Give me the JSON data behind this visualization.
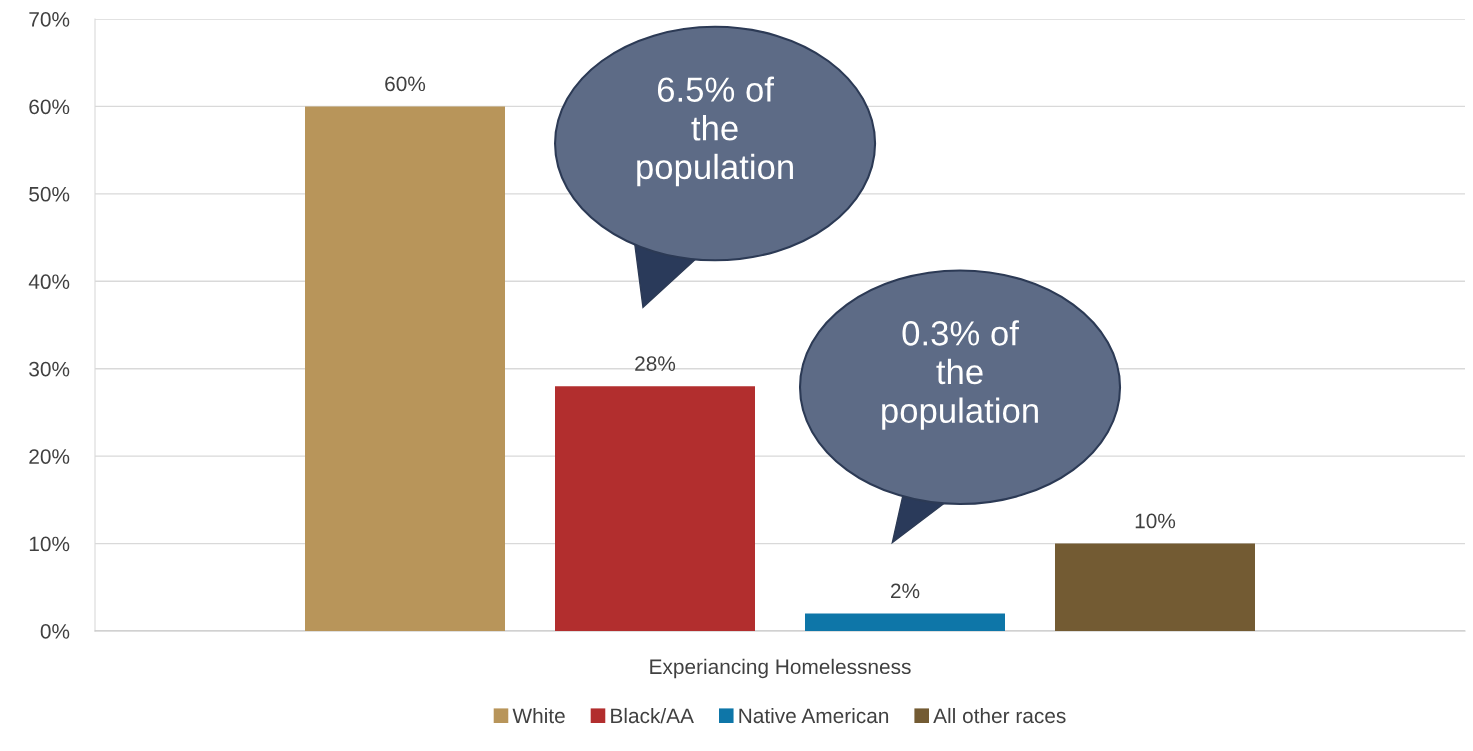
{
  "chart_data": {
    "type": "bar",
    "categories": [
      "Experiancing Homelessness"
    ],
    "series": [
      {
        "name": "White",
        "color": "#b8955a",
        "values": [
          60
        ]
      },
      {
        "name": "Black/AA",
        "color": "#b22e2e",
        "values": [
          28
        ]
      },
      {
        "name": "Native American",
        "color": "#0e76a8",
        "values": [
          2
        ]
      },
      {
        "name": "All other races",
        "color": "#735b33",
        "values": [
          10
        ]
      }
    ],
    "value_labels": [
      [
        "60%"
      ],
      [
        "28%"
      ],
      [
        "2%"
      ],
      [
        "10%"
      ]
    ],
    "ylim": [
      0,
      70
    ],
    "yticks": [
      {
        "value": 0,
        "label": "0%"
      },
      {
        "value": 10,
        "label": "10%"
      },
      {
        "value": 20,
        "label": "20%"
      },
      {
        "value": 30,
        "label": "30%"
      },
      {
        "value": 40,
        "label": "40%"
      },
      {
        "value": 50,
        "label": "50%"
      },
      {
        "value": 60,
        "label": "60%"
      },
      {
        "value": 70,
        "label": "70%"
      }
    ],
    "grid": "y",
    "legend": "bottom",
    "annotations": [
      "6.5% of\nthe\npopulation",
      "0.3% of\nthe\npopulation"
    ]
  }
}
